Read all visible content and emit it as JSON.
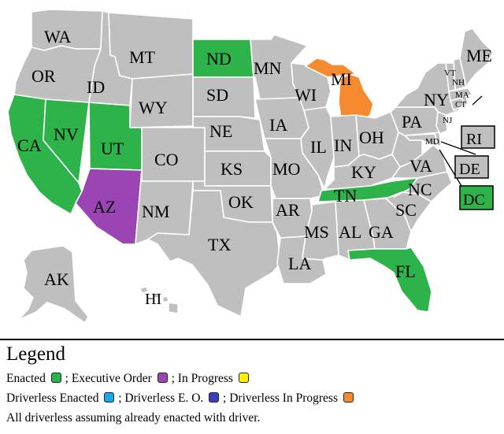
{
  "colors": {
    "enacted": "#2db34a",
    "executive_order": "#9b44b4",
    "in_progress": "#fff200",
    "driverless_enacted": "#1aa7e8",
    "driverless_eo": "#3b3fbf",
    "driverless_in_progress": "#f58a2e",
    "none": "#bfbfbf"
  },
  "states": {
    "WA": {
      "label": "WA",
      "status": "none"
    },
    "OR": {
      "label": "OR",
      "status": "none"
    },
    "CA": {
      "label": "CA",
      "status": "enacted"
    },
    "ID": {
      "label": "ID",
      "status": "none"
    },
    "NV": {
      "label": "NV",
      "status": "enacted"
    },
    "MT": {
      "label": "MT",
      "status": "none"
    },
    "WY": {
      "label": "WY",
      "status": "none"
    },
    "UT": {
      "label": "UT",
      "status": "enacted"
    },
    "CO": {
      "label": "CO",
      "status": "none"
    },
    "AZ": {
      "label": "AZ",
      "status": "executive_order"
    },
    "NM": {
      "label": "NM",
      "status": "none"
    },
    "ND": {
      "label": "ND",
      "status": "enacted"
    },
    "SD": {
      "label": "SD",
      "status": "none"
    },
    "NE": {
      "label": "NE",
      "status": "none"
    },
    "KS": {
      "label": "KS",
      "status": "none"
    },
    "OK": {
      "label": "OK",
      "status": "none"
    },
    "TX": {
      "label": "TX",
      "status": "none"
    },
    "MN": {
      "label": "MN",
      "status": "none"
    },
    "IA": {
      "label": "IA",
      "status": "none"
    },
    "MO": {
      "label": "MO",
      "status": "none"
    },
    "AR": {
      "label": "AR",
      "status": "none"
    },
    "LA": {
      "label": "LA",
      "status": "none"
    },
    "WI": {
      "label": "WI",
      "status": "none"
    },
    "IL": {
      "label": "IL",
      "status": "none"
    },
    "MI": {
      "label": "MI",
      "status": "driverless_in_progress"
    },
    "IN": {
      "label": "IN",
      "status": "none"
    },
    "OH": {
      "label": "OH",
      "status": "none"
    },
    "KY": {
      "label": "KY",
      "status": "none"
    },
    "TN": {
      "label": "TN",
      "status": "enacted"
    },
    "MS": {
      "label": "MS",
      "status": "none"
    },
    "AL": {
      "label": "AL",
      "status": "none"
    },
    "GA": {
      "label": "GA",
      "status": "none"
    },
    "FL": {
      "label": "FL",
      "status": "enacted"
    },
    "SC": {
      "label": "SC",
      "status": "none"
    },
    "NC": {
      "label": "NC",
      "status": "none"
    },
    "VA": {
      "label": "VA",
      "status": "none"
    },
    "WV": {
      "label": "",
      "status": "none"
    },
    "MD": {
      "label": "MD",
      "status": "none"
    },
    "DE": {
      "label": "DE",
      "status": "none"
    },
    "NJ": {
      "label": "NJ",
      "status": "none"
    },
    "PA": {
      "label": "PA",
      "status": "none"
    },
    "NY": {
      "label": "NY",
      "status": "none"
    },
    "CT": {
      "label": "CT",
      "status": "none"
    },
    "RI": {
      "label": "RI",
      "status": "none"
    },
    "MA": {
      "label": "MA",
      "status": "none"
    },
    "VT": {
      "label": "VT",
      "status": "none"
    },
    "NH": {
      "label": "NH",
      "status": "none"
    },
    "ME": {
      "label": "ME",
      "status": "none"
    },
    "AK": {
      "label": "AK",
      "status": "none"
    },
    "HI": {
      "label": "HI",
      "status": "none"
    },
    "DC": {
      "label": "DC",
      "status": "enacted"
    }
  },
  "legend": {
    "title": "Legend",
    "enacted": "Enacted",
    "executive_order": "; Executive Order",
    "in_progress": "; In Progress",
    "driverless_enacted": "Driverless Enacted",
    "driverless_eo": "; Driverless E. O.",
    "driverless_in_progress": "; Driverless In Progress",
    "note": "All driverless assuming already enacted with driver."
  }
}
